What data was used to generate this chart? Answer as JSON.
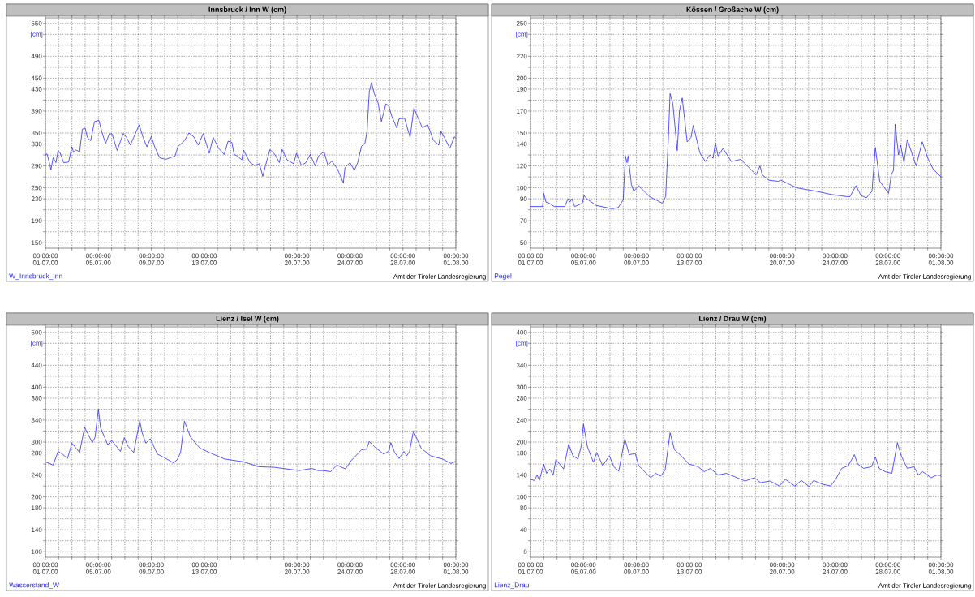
{
  "chart_data": [
    {
      "type": "line",
      "title": "Innsbruck / Inn W (cm)",
      "ylabel": "[cm]",
      "annotations": [
        "Amt der Tiroler Landesregierung"
      ],
      "grid": true,
      "legend": "bottom left",
      "xlim": [
        "2000-07-01T00:00",
        "2000-08-01T00:00"
      ],
      "ylim": [
        140,
        560
      ],
      "xticks": [
        {
          "value": "2000-07-01T00:00",
          "label": "00:00:00 01.07.00"
        },
        {
          "value": "2000-07-02T00:00",
          "label": null
        },
        {
          "value": "2000-07-03T00:00",
          "label": null
        },
        {
          "value": "2000-07-04T00:00",
          "label": null
        },
        {
          "value": "2000-07-05T00:00",
          "label": "00:00:00 05.07.00"
        },
        {
          "value": "2000-07-06T00:00",
          "label": null
        },
        {
          "value": "2000-07-07T00:00",
          "label": null
        },
        {
          "value": "2000-07-08T00:00",
          "label": null
        },
        {
          "value": "2000-07-09T00:00",
          "label": "00:00:00 09.07.00"
        },
        {
          "value": "2000-07-10T00:00",
          "label": null
        },
        {
          "value": "2000-07-11T00:00",
          "label": null
        },
        {
          "value": "2000-07-12T00:00",
          "label": null
        },
        {
          "value": "2000-07-13T00:00",
          "label": "00:00:00 13.07.00"
        },
        {
          "value": "2000-07-14T00:00",
          "label": null
        },
        {
          "value": "2000-07-15T00:00",
          "label": null
        },
        {
          "value": "2000-07-16T00:00",
          "label": null
        },
        {
          "value": "2000-07-17T00:00",
          "label": null
        },
        {
          "value": "2000-07-18T00:00",
          "label": null
        },
        {
          "value": "2000-07-19T00:00",
          "label": null
        },
        {
          "value": "2000-07-20T00:00",
          "label": "00:00:00 20.07.00"
        },
        {
          "value": "2000-07-21T00:00",
          "label": null
        },
        {
          "value": "2000-07-22T00:00",
          "label": null
        },
        {
          "value": "2000-07-23T00:00",
          "label": null
        },
        {
          "value": "2000-07-24T00:00",
          "label": "00:00:00 24.07.00"
        },
        {
          "value": "2000-07-25T00:00",
          "label": null
        },
        {
          "value": "2000-07-26T00:00",
          "label": null
        },
        {
          "value": "2000-07-27T00:00",
          "label": null
        },
        {
          "value": "2000-07-28T00:00",
          "label": "00:00:00 28.07.00"
        },
        {
          "value": "2000-07-29T00:00",
          "label": null
        },
        {
          "value": "2000-07-30T00:00",
          "label": null
        },
        {
          "value": "2000-07-31T00:00",
          "label": null
        },
        {
          "value": "2000-08-01T00:00",
          "label": "00:00:00 01.08.00"
        }
      ],
      "yticks": [
        150,
        {
          "value": 170,
          "label": null
        },
        190,
        {
          "value": 210,
          "label": null
        },
        230,
        250,
        {
          "value": 270,
          "label": null
        },
        290,
        {
          "value": 310,
          "label": null
        },
        330,
        350,
        {
          "value": 370,
          "label": null
        },
        390,
        {
          "value": 410,
          "label": null
        },
        430,
        450,
        {
          "value": 470,
          "label": null
        },
        490,
        {
          "value": 510,
          "label": null
        },
        {
          "value": 530,
          "label": null
        },
        550
      ],
      "x": [
        "2000-07-01T00:00",
        "2000-07-01T03:00",
        "2000-07-01T07:00",
        "2000-07-01T10:00",
        "2000-07-01T14:00",
        "2000-07-01T19:00",
        "2000-07-01T23:00",
        "2000-07-02T03:00",
        "2000-07-02T09:00",
        "2000-07-02T18:00",
        "2000-07-03T00:00",
        "2000-07-03T03:00",
        "2000-07-03T07:00",
        "2000-07-03T14:00",
        "2000-07-03T19:00",
        "2000-07-04T00:00",
        "2000-07-04T04:00",
        "2000-07-04T10:00",
        "2000-07-04T17:00",
        "2000-07-05T01:00",
        "2000-07-05T06:00",
        "2000-07-05T13:00",
        "2000-07-05T20:00",
        "2000-07-06T01:00",
        "2000-07-06T10:00",
        "2000-07-06T21:00",
        "2000-07-07T03:00",
        "2000-07-07T10:00",
        "2000-07-07T16:00",
        "2000-07-08T02:00",
        "2000-07-08T09:00",
        "2000-07-08T16:00",
        "2000-07-09T00:00",
        "2000-07-09T06:00",
        "2000-07-09T15:00",
        "2000-07-10T02:00",
        "2000-07-10T19:00",
        "2000-07-11T00:00",
        "2000-07-11T12:00",
        "2000-07-11T20:00",
        "2000-07-12T05:00",
        "2000-07-12T13:00",
        "2000-07-12T22:00",
        "2000-07-13T09:00",
        "2000-07-13T16:00",
        "2000-07-14T02:00",
        "2000-07-14T12:00",
        "2000-07-14T19:00",
        "2000-07-15T02:00",
        "2000-07-15T06:00",
        "2000-07-15T12:00",
        "2000-07-15T20:00",
        "2000-07-15T23:00",
        "2000-07-16T11:00",
        "2000-07-16T19:00",
        "2000-07-17T04:00",
        "2000-07-17T10:00",
        "2000-07-17T15:00",
        "2000-07-17T23:00",
        "2000-07-18T08:00",
        "2000-07-18T16:00",
        "2000-07-18T21:00",
        "2000-07-19T06:00",
        "2000-07-19T18:00",
        "2000-07-19T23:00",
        "2000-07-20T08:00",
        "2000-07-20T16:00",
        "2000-07-21T00:00",
        "2000-07-21T09:00",
        "2000-07-21T15:00",
        "2000-07-22T01:00",
        "2000-07-22T08:00",
        "2000-07-22T15:00",
        "2000-07-23T01:00",
        "2000-07-23T12:00",
        "2000-07-23T15:00",
        "2000-07-24T00:00",
        "2000-07-24T08:00",
        "2000-07-24T14:00",
        "2000-07-24T21:00",
        "2000-07-25T03:00",
        "2000-07-25T07:00",
        "2000-07-25T11:00",
        "2000-07-25T15:00",
        "2000-07-25T20:00",
        "2000-07-26T03:00",
        "2000-07-26T09:00",
        "2000-07-26T17:00",
        "2000-07-26T22:00",
        "2000-07-27T04:00",
        "2000-07-27T13:00",
        "2000-07-27T17:00",
        "2000-07-28T03:00",
        "2000-07-28T13:00",
        "2000-07-28T20:00",
        "2000-07-29T04:00",
        "2000-07-29T11:00",
        "2000-07-29T21:00",
        "2000-07-30T07:00",
        "2000-07-30T17:00",
        "2000-07-30T21:00",
        "2000-07-31T03:00",
        "2000-07-31T13:00",
        "2000-07-31T21:00",
        "2000-08-01T00:00"
      ],
      "series": [
        {
          "name": "W_Innsbruck_Inn",
          "color": "#2b2bff",
          "values": [
            310,
            312,
            296,
            283,
            305,
            296,
            318,
            313,
            296,
            297,
            325,
            315,
            319,
            316,
            357,
            359,
            342,
            336,
            371,
            373,
            353,
            331,
            349,
            348,
            318,
            349,
            342,
            328,
            342,
            365,
            342,
            325,
            344,
            325,
            305,
            302,
            308,
            325,
            336,
            350,
            343,
            328,
            349,
            313,
            342,
            322,
            311,
            335,
            333,
            311,
            308,
            301,
            319,
            296,
            291,
            294,
            271,
            291,
            320,
            311,
            296,
            320,
            301,
            294,
            313,
            291,
            296,
            311,
            290,
            308,
            316,
            291,
            299,
            285,
            259,
            287,
            296,
            282,
            296,
            326,
            331,
            353,
            425,
            442,
            422,
            405,
            371,
            403,
            400,
            380,
            359,
            376,
            377,
            342,
            396,
            376,
            360,
            365,
            337,
            328,
            353,
            342,
            322,
            343,
            341
          ]
        }
      ]
    },
    {
      "type": "line",
      "title": "Kössen / Großache W (cm)",
      "ylabel": "[cm]",
      "annotations": [
        "Amt der Tiroler Landesregierung"
      ],
      "grid": true,
      "legend": "bottom left",
      "xlim": [
        "2000-07-01T00:00",
        "2000-08-01T00:00"
      ],
      "ylim": [
        45,
        255
      ],
      "xticks": [
        {
          "value": "2000-07-01T00:00",
          "label": "00:00:00 01.07.00"
        },
        {
          "value": "2000-07-02T00:00",
          "label": null
        },
        {
          "value": "2000-07-03T00:00",
          "label": null
        },
        {
          "value": "2000-07-04T00:00",
          "label": null
        },
        {
          "value": "2000-07-05T00:00",
          "label": "00:00:00 05.07.00"
        },
        {
          "value": "2000-07-06T00:00",
          "label": null
        },
        {
          "value": "2000-07-07T00:00",
          "label": null
        },
        {
          "value": "2000-07-08T00:00",
          "label": null
        },
        {
          "value": "2000-07-09T00:00",
          "label": "00:00:00 09.07.00"
        },
        {
          "value": "2000-07-10T00:00",
          "label": null
        },
        {
          "value": "2000-07-11T00:00",
          "label": null
        },
        {
          "value": "2000-07-12T00:00",
          "label": null
        },
        {
          "value": "2000-07-13T00:00",
          "label": "00:00:00 13.07.00"
        },
        {
          "value": "2000-07-14T00:00",
          "label": null
        },
        {
          "value": "2000-07-15T00:00",
          "label": null
        },
        {
          "value": "2000-07-16T00:00",
          "label": null
        },
        {
          "value": "2000-07-17T00:00",
          "label": null
        },
        {
          "value": "2000-07-18T00:00",
          "label": null
        },
        {
          "value": "2000-07-19T00:00",
          "label": null
        },
        {
          "value": "2000-07-20T00:00",
          "label": "00:00:00 20.07.00"
        },
        {
          "value": "2000-07-21T00:00",
          "label": null
        },
        {
          "value": "2000-07-22T00:00",
          "label": null
        },
        {
          "value": "2000-07-23T00:00",
          "label": null
        },
        {
          "value": "2000-07-24T00:00",
          "label": "00:00:00 24.07.00"
        },
        {
          "value": "2000-07-25T00:00",
          "label": null
        },
        {
          "value": "2000-07-26T00:00",
          "label": null
        },
        {
          "value": "2000-07-27T00:00",
          "label": null
        },
        {
          "value": "2000-07-28T00:00",
          "label": "00:00:00 28.07.00"
        },
        {
          "value": "2000-07-29T00:00",
          "label": null
        },
        {
          "value": "2000-07-30T00:00",
          "label": null
        },
        {
          "value": "2000-07-31T00:00",
          "label": null
        },
        {
          "value": "2000-08-01T00:00",
          "label": "00:00:00 01.08.00"
        }
      ],
      "yticks": [
        50,
        {
          "value": 60,
          "label": null
        },
        70,
        {
          "value": 80,
          "label": null
        },
        90,
        100,
        {
          "value": 110,
          "label": null
        },
        120,
        {
          "value": 130,
          "label": null
        },
        140,
        150,
        {
          "value": 160,
          "label": null
        },
        170,
        {
          "value": 180,
          "label": null
        },
        190,
        200,
        {
          "value": 210,
          "label": null
        },
        220,
        {
          "value": 230,
          "label": null
        },
        {
          "value": 240,
          "label": null
        },
        250
      ],
      "x": [
        "2000-07-01T00:00",
        "2000-07-01T14:00",
        "2000-07-01T22:00",
        "2000-07-02T00:00",
        "2000-07-02T04:00",
        "2000-07-02T10:00",
        "2000-07-02T19:00",
        "2000-07-03T14:00",
        "2000-07-03T20:00",
        "2000-07-03T23:00",
        "2000-07-04T03:00",
        "2000-07-04T08:00",
        "2000-07-04T13:00",
        "2000-07-04T22:00",
        "2000-07-05T01:00",
        "2000-07-05T06:00",
        "2000-07-05T23:00",
        "2000-07-07T04:00",
        "2000-07-07T15:00",
        "2000-07-08T00:00",
        "2000-07-08T04:00",
        "2000-07-08T07:00",
        "2000-07-08T09:00",
        "2000-07-08T15:00",
        "2000-07-08T19:00",
        "2000-07-09T04:00",
        "2000-07-10T00:00",
        "2000-07-10T23:00",
        "2000-07-11T05:00",
        "2000-07-11T10:00",
        "2000-07-11T13:00",
        "2000-07-11T18:00",
        "2000-07-12T02:00",
        "2000-07-12T06:00",
        "2000-07-12T11:00",
        "2000-07-12T20:00",
        "2000-07-13T03:00",
        "2000-07-13T07:00",
        "2000-07-13T19:00",
        "2000-07-14T05:00",
        "2000-07-14T13:00",
        "2000-07-14T19:00",
        "2000-07-14T23:00",
        "2000-07-15T04:00",
        "2000-07-15T13:00",
        "2000-07-16T04:00",
        "2000-07-16T21:00",
        "2000-07-18T01:00",
        "2000-07-18T08:00",
        "2000-07-18T12:00",
        "2000-07-19T00:00",
        "2000-07-19T17:00",
        "2000-07-19T22:00",
        "2000-07-21T03:00",
        "2000-07-22T13:00",
        "2000-07-23T17:00",
        "2000-07-24T22:00",
        "2000-07-25T03:00",
        "2000-07-25T14:00",
        "2000-07-25T23:00",
        "2000-07-26T09:00",
        "2000-07-26T19:00",
        "2000-07-27T01:00",
        "2000-07-27T09:00",
        "2000-07-28T01:00",
        "2000-07-28T06:00",
        "2000-07-28T10:00",
        "2000-07-28T13:00",
        "2000-07-28T19:00",
        "2000-07-28T23:00",
        "2000-07-29T05:00",
        "2000-07-29T11:00",
        "2000-07-30T03:00",
        "2000-07-30T14:00",
        "2000-07-31T01:00",
        "2000-07-31T10:00",
        "2000-08-01T00:00"
      ],
      "series": [
        {
          "name": "Pegel",
          "color": "#2b2bff",
          "values": [
            83,
            83,
            83,
            95,
            87,
            86,
            83,
            83,
            90,
            87,
            90,
            83,
            84,
            86,
            93,
            90,
            84,
            81,
            82,
            89,
            129,
            123,
            129,
            103,
            97,
            102,
            92,
            86,
            92,
            146,
            186,
            177,
            134,
            170,
            182,
            142,
            146,
            157,
            132,
            124,
            130,
            127,
            141,
            129,
            136,
            124,
            126,
            112,
            120,
            112,
            107,
            106,
            107,
            100,
            97,
            94,
            92,
            92,
            102,
            93,
            91,
            97,
            137,
            106,
            95,
            112,
            116,
            158,
            130,
            139,
            123,
            144,
            120,
            142,
            126,
            117,
            110
          ]
        }
      ]
    },
    {
      "type": "line",
      "title": "Lienz / Isel W (cm)",
      "ylabel": "[cm]",
      "annotations": [
        "Amt der Tiroler Landesregierung"
      ],
      "grid": true,
      "legend": "bottom left",
      "xlim": [
        "2000-07-01T00:00",
        "2000-08-01T00:00"
      ],
      "ylim": [
        90,
        510
      ],
      "xticks": [
        {
          "value": "2000-07-01T00:00",
          "label": "00:00:00 01.07.00"
        },
        {
          "value": "2000-07-02T00:00",
          "label": null
        },
        {
          "value": "2000-07-03T00:00",
          "label": null
        },
        {
          "value": "2000-07-04T00:00",
          "label": null
        },
        {
          "value": "2000-07-05T00:00",
          "label": "00:00:00 05.07.00"
        },
        {
          "value": "2000-07-06T00:00",
          "label": null
        },
        {
          "value": "2000-07-07T00:00",
          "label": null
        },
        {
          "value": "2000-07-08T00:00",
          "label": null
        },
        {
          "value": "2000-07-09T00:00",
          "label": "00:00:00 09.07.00"
        },
        {
          "value": "2000-07-10T00:00",
          "label": null
        },
        {
          "value": "2000-07-11T00:00",
          "label": null
        },
        {
          "value": "2000-07-12T00:00",
          "label": null
        },
        {
          "value": "2000-07-13T00:00",
          "label": "00:00:00 13.07.00"
        },
        {
          "value": "2000-07-14T00:00",
          "label": null
        },
        {
          "value": "2000-07-15T00:00",
          "label": null
        },
        {
          "value": "2000-07-16T00:00",
          "label": null
        },
        {
          "value": "2000-07-17T00:00",
          "label": null
        },
        {
          "value": "2000-07-18T00:00",
          "label": null
        },
        {
          "value": "2000-07-19T00:00",
          "label": null
        },
        {
          "value": "2000-07-20T00:00",
          "label": "00:00:00 20.07.00"
        },
        {
          "value": "2000-07-21T00:00",
          "label": null
        },
        {
          "value": "2000-07-22T00:00",
          "label": null
        },
        {
          "value": "2000-07-23T00:00",
          "label": null
        },
        {
          "value": "2000-07-24T00:00",
          "label": "00:00:00 24.07.00"
        },
        {
          "value": "2000-07-25T00:00",
          "label": null
        },
        {
          "value": "2000-07-26T00:00",
          "label": null
        },
        {
          "value": "2000-07-27T00:00",
          "label": null
        },
        {
          "value": "2000-07-28T00:00",
          "label": "00:00:00 28.07.00"
        },
        {
          "value": "2000-07-29T00:00",
          "label": null
        },
        {
          "value": "2000-07-30T00:00",
          "label": null
        },
        {
          "value": "2000-07-31T00:00",
          "label": null
        },
        {
          "value": "2000-08-01T00:00",
          "label": "00:00:00 01.08.00"
        }
      ],
      "yticks": [
        100,
        {
          "value": 120,
          "label": null
        },
        140,
        {
          "value": 160,
          "label": null
        },
        180,
        200,
        {
          "value": 220,
          "label": null
        },
        240,
        {
          "value": 260,
          "label": null
        },
        280,
        300,
        {
          "value": 320,
          "label": null
        },
        340,
        {
          "value": 360,
          "label": null
        },
        380,
        400,
        {
          "value": 420,
          "label": null
        },
        440,
        {
          "value": 460,
          "label": null
        },
        {
          "value": 480,
          "label": null
        },
        500
      ],
      "x": [
        "2000-07-01T00:00",
        "2000-07-01T14:00",
        "2000-07-01T23:00",
        "2000-07-02T07:00",
        "2000-07-02T16:00",
        "2000-07-03T00:00",
        "2000-07-03T14:00",
        "2000-07-03T23:00",
        "2000-07-04T13:00",
        "2000-07-04T18:00",
        "2000-07-05T00:00",
        "2000-07-05T04:00",
        "2000-07-05T17:00",
        "2000-07-06T00:00",
        "2000-07-06T16:00",
        "2000-07-06T23:00",
        "2000-07-07T06:00",
        "2000-07-07T16:00",
        "2000-07-08T03:00",
        "2000-07-08T07:00",
        "2000-07-08T14:00",
        "2000-07-08T22:00",
        "2000-07-09T11:00",
        "2000-07-09T23:00",
        "2000-07-10T16:00",
        "2000-07-10T23:00",
        "2000-07-11T05:00",
        "2000-07-11T12:00",
        "2000-07-11T23:00",
        "2000-07-12T16:00",
        "2000-07-13T09:00",
        "2000-07-14T13:00",
        "2000-07-15T23:00",
        "2000-07-17T03:00",
        "2000-07-18T07:00",
        "2000-07-20T04:00",
        "2000-07-21T03:00",
        "2000-07-21T14:00",
        "2000-07-21T23:00",
        "2000-07-22T13:00",
        "2000-07-23T00:00",
        "2000-07-23T16:00",
        "2000-07-24T02:00",
        "2000-07-24T21:00",
        "2000-07-25T06:00",
        "2000-07-25T11:00",
        "2000-07-25T20:00",
        "2000-07-26T13:00",
        "2000-07-26T22:00",
        "2000-07-27T02:00",
        "2000-07-27T09:00",
        "2000-07-27T17:00",
        "2000-07-28T02:00",
        "2000-07-28T07:00",
        "2000-07-28T12:00",
        "2000-07-28T19:00",
        "2000-07-29T09:00",
        "2000-07-30T02:00",
        "2000-07-31T00:00",
        "2000-07-31T15:00",
        "2000-08-01T00:00"
      ],
      "series": [
        {
          "name": "Wasserstand_W",
          "color": "#2b2bff",
          "values": [
            264,
            258,
            283,
            278,
            270,
            298,
            281,
            327,
            299,
            309,
            360,
            326,
            295,
            303,
            283,
            308,
            292,
            281,
            339,
            318,
            298,
            306,
            278,
            272,
            262,
            268,
            281,
            338,
            309,
            289,
            281,
            269,
            264,
            255,
            254,
            248,
            252,
            248,
            248,
            246,
            258,
            251,
            266,
            286,
            287,
            301,
            292,
            278,
            283,
            299,
            281,
            270,
            283,
            275,
            283,
            320,
            289,
            275,
            269,
            261,
            265
          ]
        }
      ]
    },
    {
      "type": "line",
      "title": "Lienz / Drau W (cm)",
      "ylabel": "[cm]",
      "annotations": [
        "Amt der Tiroler Landesregierung"
      ],
      "grid": true,
      "legend": "bottom left",
      "xlim": [
        "2000-07-01T00:00",
        "2000-08-01T00:00"
      ],
      "ylim": [
        -10,
        410
      ],
      "xticks": [
        {
          "value": "2000-07-01T00:00",
          "label": "00:00:00 01.07.00"
        },
        {
          "value": "2000-07-02T00:00",
          "label": null
        },
        {
          "value": "2000-07-03T00:00",
          "label": null
        },
        {
          "value": "2000-07-04T00:00",
          "label": null
        },
        {
          "value": "2000-07-05T00:00",
          "label": "00:00:00 05.07.00"
        },
        {
          "value": "2000-07-06T00:00",
          "label": null
        },
        {
          "value": "2000-07-07T00:00",
          "label": null
        },
        {
          "value": "2000-07-08T00:00",
          "label": null
        },
        {
          "value": "2000-07-09T00:00",
          "label": "00:00:00 09.07.00"
        },
        {
          "value": "2000-07-10T00:00",
          "label": null
        },
        {
          "value": "2000-07-11T00:00",
          "label": null
        },
        {
          "value": "2000-07-12T00:00",
          "label": null
        },
        {
          "value": "2000-07-13T00:00",
          "label": "00:00:00 13.07.00"
        },
        {
          "value": "2000-07-14T00:00",
          "label": null
        },
        {
          "value": "2000-07-15T00:00",
          "label": null
        },
        {
          "value": "2000-07-16T00:00",
          "label": null
        },
        {
          "value": "2000-07-17T00:00",
          "label": null
        },
        {
          "value": "2000-07-18T00:00",
          "label": null
        },
        {
          "value": "2000-07-19T00:00",
          "label": null
        },
        {
          "value": "2000-07-20T00:00",
          "label": "00:00:00 20.07.00"
        },
        {
          "value": "2000-07-21T00:00",
          "label": null
        },
        {
          "value": "2000-07-22T00:00",
          "label": null
        },
        {
          "value": "2000-07-23T00:00",
          "label": null
        },
        {
          "value": "2000-07-24T00:00",
          "label": "00:00:00 24.07.00"
        },
        {
          "value": "2000-07-25T00:00",
          "label": null
        },
        {
          "value": "2000-07-26T00:00",
          "label": null
        },
        {
          "value": "2000-07-27T00:00",
          "label": null
        },
        {
          "value": "2000-07-28T00:00",
          "label": "00:00:00 28.07.00"
        },
        {
          "value": "2000-07-29T00:00",
          "label": null
        },
        {
          "value": "2000-07-30T00:00",
          "label": null
        },
        {
          "value": "2000-07-31T00:00",
          "label": null
        },
        {
          "value": "2000-08-01T00:00",
          "label": "00:00:00 01.08.00"
        }
      ],
      "yticks": [
        0,
        {
          "value": 20,
          "label": null
        },
        40,
        {
          "value": 60,
          "label": null
        },
        80,
        100,
        {
          "value": 120,
          "label": null
        },
        140,
        {
          "value": 160,
          "label": null
        },
        180,
        200,
        {
          "value": 220,
          "label": null
        },
        240,
        {
          "value": 260,
          "label": null
        },
        280,
        300,
        {
          "value": 320,
          "label": null
        },
        340,
        {
          "value": 360,
          "label": null
        },
        {
          "value": 380,
          "label": null
        },
        400
      ],
      "x": [
        "2000-07-01T00:00",
        "2000-07-01T07:00",
        "2000-07-01T12:00",
        "2000-07-01T16:00",
        "2000-07-02T00:00",
        "2000-07-02T05:00",
        "2000-07-02T11:00",
        "2000-07-02T17:00",
        "2000-07-02T22:00",
        "2000-07-03T07:00",
        "2000-07-03T12:00",
        "2000-07-03T21:00",
        "2000-07-04T05:00",
        "2000-07-04T14:00",
        "2000-07-04T20:00",
        "2000-07-05T00:00",
        "2000-07-05T07:00",
        "2000-07-05T18:00",
        "2000-07-06T00:00",
        "2000-07-06T11:00",
        "2000-07-06T23:00",
        "2000-07-07T07:00",
        "2000-07-07T16:00",
        "2000-07-08T03:00",
        "2000-07-08T11:00",
        "2000-07-08T22:00",
        "2000-07-09T04:00",
        "2000-07-09T15:00",
        "2000-07-10T02:00",
        "2000-07-10T11:00",
        "2000-07-10T20:00",
        "2000-07-11T04:00",
        "2000-07-11T13:00",
        "2000-07-11T21:00",
        "2000-07-12T09:00",
        "2000-07-12T23:00",
        "2000-07-13T16:00",
        "2000-07-14T03:00",
        "2000-07-14T14:00",
        "2000-07-15T04:00",
        "2000-07-15T19:00",
        "2000-07-16T12:00",
        "2000-07-17T05:00",
        "2000-07-17T22:00",
        "2000-07-18T09:00",
        "2000-07-19T02:00",
        "2000-07-19T19:00",
        "2000-07-20T06:00",
        "2000-07-20T23:00",
        "2000-07-21T11:00",
        "2000-07-22T01:00",
        "2000-07-22T09:00",
        "2000-07-23T02:00",
        "2000-07-23T16:00",
        "2000-07-24T01:00",
        "2000-07-24T12:00",
        "2000-07-25T00:00",
        "2000-07-25T11:00",
        "2000-07-25T17:00",
        "2000-07-26T04:00",
        "2000-07-26T18:00",
        "2000-07-27T01:00",
        "2000-07-27T08:00",
        "2000-07-27T19:00",
        "2000-07-28T07:00",
        "2000-07-28T17:00",
        "2000-07-29T00:00",
        "2000-07-29T11:00",
        "2000-07-29T23:00",
        "2000-07-30T07:00",
        "2000-07-30T15:00",
        "2000-07-31T06:00",
        "2000-07-31T17:00",
        "2000-08-01T00:00"
      ],
      "series": [
        {
          "name": "Lienz_Drau",
          "color": "#2b2bff",
          "values": [
            132,
            130,
            140,
            130,
            160,
            143,
            151,
            140,
            168,
            157,
            151,
            196,
            175,
            169,
            193,
            233,
            192,
            163,
            181,
            157,
            175,
            155,
            147,
            206,
            177,
            179,
            157,
            146,
            135,
            143,
            138,
            149,
            217,
            186,
            175,
            160,
            155,
            146,
            152,
            140,
            143,
            136,
            129,
            135,
            126,
            129,
            120,
            132,
            120,
            130,
            119,
            130,
            123,
            120,
            132,
            152,
            157,
            177,
            160,
            152,
            155,
            173,
            152,
            146,
            143,
            199,
            175,
            152,
            155,
            140,
            146,
            135,
            140,
            139
          ]
        }
      ]
    }
  ]
}
